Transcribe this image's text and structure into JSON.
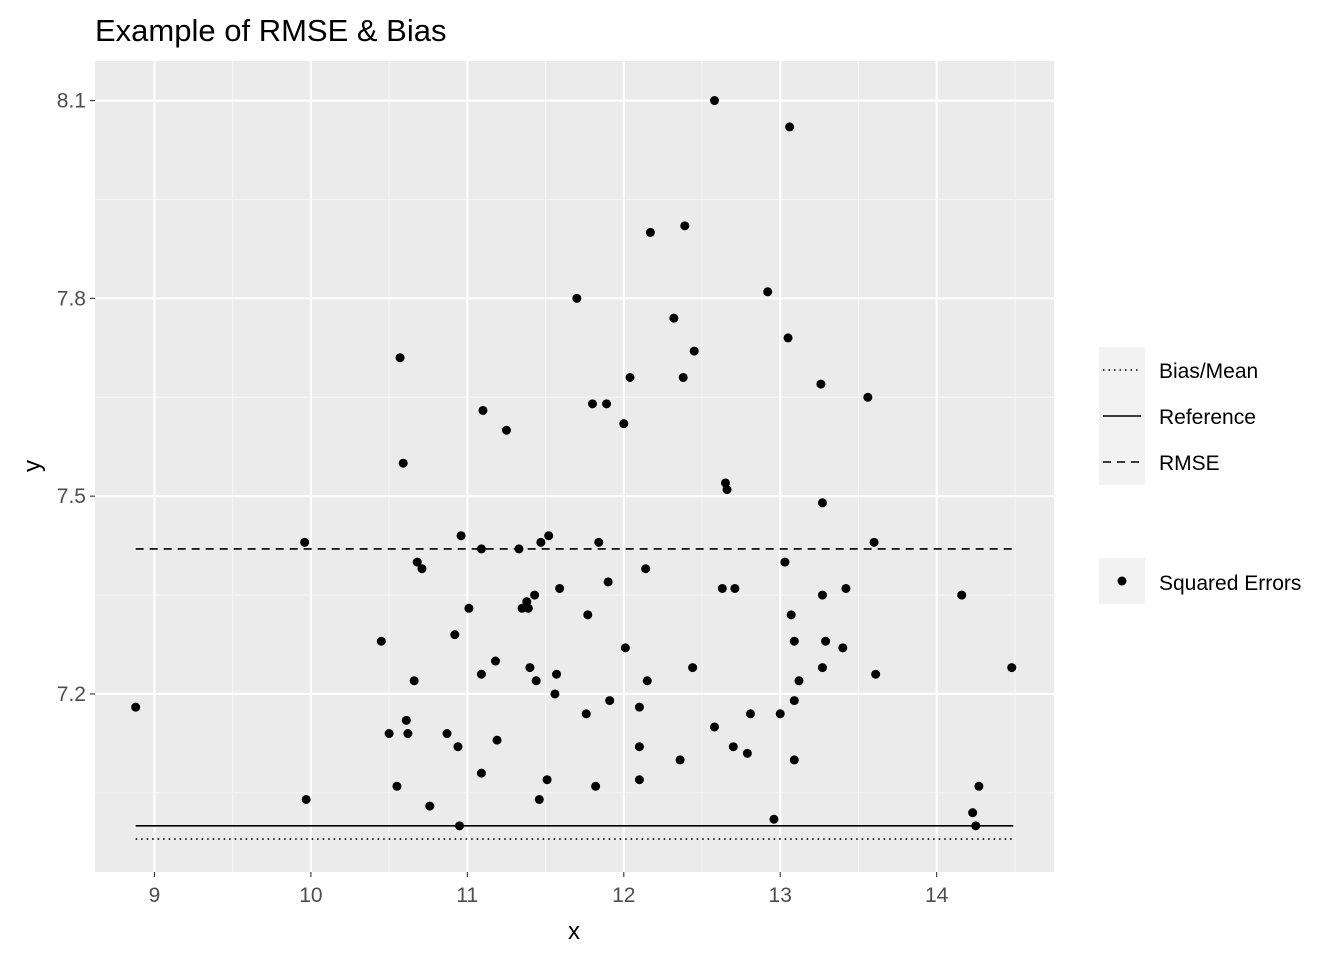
{
  "chart_data": {
    "type": "scatter",
    "title": "Example of RMSE & Bias",
    "xlabel": "x",
    "ylabel": "y",
    "xlim": [
      8.62,
      14.75
    ],
    "ylim": [
      6.93,
      8.16
    ],
    "xticks": [
      9,
      10,
      11,
      12,
      13,
      14
    ],
    "yticks": [
      7.2,
      7.5,
      7.8,
      8.1
    ],
    "ytick_labels": [
      "7.2",
      "7.5",
      "7.8",
      "8.1"
    ],
    "grid": true,
    "legend_position": "right",
    "hlines": [
      {
        "name": "Bias/Mean",
        "y": 6.98,
        "style": "dotted",
        "x_range": [
          8.88,
          14.49
        ]
      },
      {
        "name": "Reference",
        "y": 7.0,
        "style": "solid",
        "x_range": [
          8.88,
          14.49
        ]
      },
      {
        "name": "RMSE",
        "y": 7.42,
        "style": "dashed",
        "x_range": [
          8.88,
          14.49
        ]
      }
    ],
    "series": [
      {
        "name": "Squared Errors",
        "points": [
          [
            8.88,
            7.18
          ],
          [
            9.96,
            7.43
          ],
          [
            9.97,
            7.04
          ],
          [
            10.45,
            7.28
          ],
          [
            10.5,
            7.14
          ],
          [
            10.55,
            7.06
          ],
          [
            10.57,
            7.71
          ],
          [
            10.59,
            7.55
          ],
          [
            10.61,
            7.16
          ],
          [
            10.62,
            7.14
          ],
          [
            10.66,
            7.22
          ],
          [
            10.68,
            7.4
          ],
          [
            10.71,
            7.39
          ],
          [
            10.76,
            7.03
          ],
          [
            10.87,
            7.14
          ],
          [
            10.92,
            7.29
          ],
          [
            10.94,
            7.12
          ],
          [
            10.95,
            7.0
          ],
          [
            10.96,
            7.44
          ],
          [
            11.01,
            7.33
          ],
          [
            11.09,
            7.08
          ],
          [
            11.09,
            7.23
          ],
          [
            11.09,
            7.42
          ],
          [
            11.1,
            7.63
          ],
          [
            11.18,
            7.25
          ],
          [
            11.19,
            7.13
          ],
          [
            11.25,
            7.6
          ],
          [
            11.33,
            7.42
          ],
          [
            11.35,
            7.33
          ],
          [
            11.38,
            7.34
          ],
          [
            11.39,
            7.33
          ],
          [
            11.4,
            7.24
          ],
          [
            11.43,
            7.35
          ],
          [
            11.44,
            7.22
          ],
          [
            11.46,
            7.04
          ],
          [
            11.47,
            7.43
          ],
          [
            11.51,
            7.07
          ],
          [
            11.52,
            7.44
          ],
          [
            11.56,
            7.2
          ],
          [
            11.57,
            7.23
          ],
          [
            11.59,
            7.36
          ],
          [
            11.7,
            7.8
          ],
          [
            11.76,
            7.17
          ],
          [
            11.77,
            7.32
          ],
          [
            11.8,
            7.64
          ],
          [
            11.82,
            7.06
          ],
          [
            11.84,
            7.43
          ],
          [
            11.89,
            7.64
          ],
          [
            11.9,
            7.37
          ],
          [
            11.91,
            7.19
          ],
          [
            12.0,
            7.61
          ],
          [
            12.01,
            7.27
          ],
          [
            12.04,
            7.68
          ],
          [
            12.1,
            7.07
          ],
          [
            12.1,
            7.12
          ],
          [
            12.1,
            7.18
          ],
          [
            12.14,
            7.39
          ],
          [
            12.15,
            7.22
          ],
          [
            12.17,
            7.9
          ],
          [
            12.32,
            7.77
          ],
          [
            12.36,
            7.1
          ],
          [
            12.38,
            7.68
          ],
          [
            12.39,
            7.91
          ],
          [
            12.44,
            7.24
          ],
          [
            12.45,
            7.72
          ],
          [
            12.58,
            8.1
          ],
          [
            12.58,
            7.15
          ],
          [
            12.63,
            7.36
          ],
          [
            12.65,
            7.52
          ],
          [
            12.66,
            7.51
          ],
          [
            12.7,
            7.12
          ],
          [
            12.71,
            7.36
          ],
          [
            12.79,
            7.11
          ],
          [
            12.81,
            7.17
          ],
          [
            12.92,
            7.81
          ],
          [
            12.96,
            7.01
          ],
          [
            13.0,
            7.17
          ],
          [
            13.03,
            7.4
          ],
          [
            13.05,
            7.74
          ],
          [
            13.06,
            8.06
          ],
          [
            13.07,
            7.32
          ],
          [
            13.09,
            7.28
          ],
          [
            13.09,
            7.19
          ],
          [
            13.09,
            7.1
          ],
          [
            13.12,
            7.22
          ],
          [
            13.26,
            7.67
          ],
          [
            13.27,
            7.49
          ],
          [
            13.27,
            7.35
          ],
          [
            13.27,
            7.24
          ],
          [
            13.29,
            7.28
          ],
          [
            13.4,
            7.27
          ],
          [
            13.42,
            7.36
          ],
          [
            13.56,
            7.65
          ],
          [
            13.6,
            7.43
          ],
          [
            13.61,
            7.23
          ],
          [
            14.16,
            7.35
          ],
          [
            14.23,
            7.02
          ],
          [
            14.25,
            7.0
          ],
          [
            14.27,
            7.06
          ],
          [
            14.48,
            7.24
          ]
        ]
      }
    ],
    "legend": {
      "lines": [
        "Bias/Mean",
        "Reference",
        "RMSE"
      ],
      "points": [
        "Squared Errors"
      ]
    },
    "colors": {
      "panel": "#ebebeb",
      "grid_major": "#ffffff",
      "grid_minor": "#f5f5f5",
      "marks": "#000000",
      "tick_text": "#4d4d4d"
    }
  }
}
